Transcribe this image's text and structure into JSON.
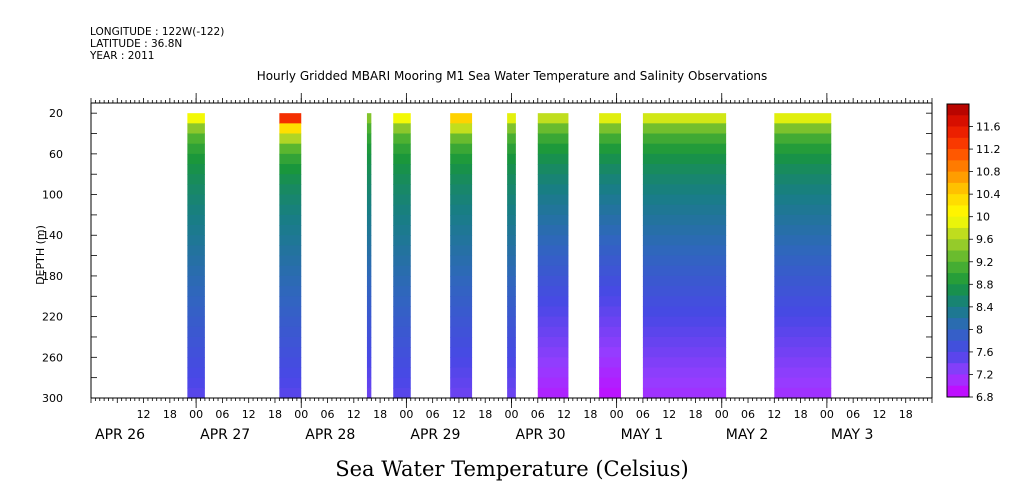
{
  "header": {
    "longitude": "LONGITUDE : 122W(-122)",
    "latitude": "LATITUDE : 36.8N",
    "year": "YEAR : 2011"
  },
  "chart_data": {
    "type": "heatmap",
    "title": "Hourly Gridded MBARI Mooring M1 Sea Water Temperature and Salinity Observations",
    "xlabel": "Sea Water Temperature (Celsius)",
    "ylabel": "DEPTH (m)",
    "y_range": [
      0,
      300
    ],
    "y_ticks": [
      20,
      60,
      100,
      140,
      180,
      220,
      260,
      300
    ],
    "y_inverted": true,
    "x_range_hours": [
      0,
      192
    ],
    "x_start": "APR 26 00",
    "x_hour_labels": [
      {
        "h": 12,
        "label": "12"
      },
      {
        "h": 18,
        "label": "18"
      },
      {
        "h": 24,
        "label": "00"
      },
      {
        "h": 30,
        "label": "06"
      },
      {
        "h": 36,
        "label": "12"
      },
      {
        "h": 42,
        "label": "18"
      },
      {
        "h": 48,
        "label": "00"
      },
      {
        "h": 54,
        "label": "06"
      },
      {
        "h": 60,
        "label": "12"
      },
      {
        "h": 66,
        "label": "18"
      },
      {
        "h": 72,
        "label": "00"
      },
      {
        "h": 78,
        "label": "06"
      },
      {
        "h": 84,
        "label": "12"
      },
      {
        "h": 90,
        "label": "18"
      },
      {
        "h": 96,
        "label": "00"
      },
      {
        "h": 102,
        "label": "06"
      },
      {
        "h": 108,
        "label": "12"
      },
      {
        "h": 114,
        "label": "18"
      },
      {
        "h": 120,
        "label": "00"
      },
      {
        "h": 126,
        "label": "06"
      },
      {
        "h": 132,
        "label": "12"
      },
      {
        "h": 138,
        "label": "18"
      },
      {
        "h": 144,
        "label": "00"
      },
      {
        "h": 150,
        "label": "06"
      },
      {
        "h": 156,
        "label": "12"
      },
      {
        "h": 162,
        "label": "18"
      },
      {
        "h": 168,
        "label": "00"
      },
      {
        "h": 174,
        "label": "06"
      },
      {
        "h": 180,
        "label": "12"
      },
      {
        "h": 186,
        "label": "18"
      }
    ],
    "day_labels": [
      {
        "h": 0,
        "label": "APR 26"
      },
      {
        "h": 24,
        "label": "APR 27"
      },
      {
        "h": 48,
        "label": "APR 28"
      },
      {
        "h": 72,
        "label": "APR 29"
      },
      {
        "h": 96,
        "label": "APR 30"
      },
      {
        "h": 120,
        "label": "MAY  1"
      },
      {
        "h": 144,
        "label": "MAY  2"
      },
      {
        "h": 168,
        "label": "MAY  3"
      }
    ],
    "colorbar": {
      "min": 6.8,
      "max": 12.0,
      "step": 0.2,
      "tick_labels": [
        "11.6",
        "11.2",
        "10.8",
        "10.4",
        "10",
        "9.6",
        "9.2",
        "8.8",
        "8.4",
        "8",
        "7.6",
        "7.2",
        "6.8"
      ]
    },
    "data_segments": [
      {
        "start_h": 22,
        "end_h": 26,
        "surface_temp": 9.9,
        "bottom_temp": 7.5
      },
      {
        "start_h": 43,
        "end_h": 48,
        "surface_temp": 11.8,
        "bottom_temp": 7.5
      },
      {
        "start_h": 63,
        "end_h": 64,
        "surface_temp": 9.2,
        "bottom_temp": 7.4
      },
      {
        "start_h": 69,
        "end_h": 73,
        "surface_temp": 9.9,
        "bottom_temp": 7.5
      },
      {
        "start_h": 82,
        "end_h": 87,
        "surface_temp": 10.5,
        "bottom_temp": 7.4
      },
      {
        "start_h": 95,
        "end_h": 97,
        "surface_temp": 9.8,
        "bottom_temp": 7.4
      },
      {
        "start_h": 102,
        "end_h": 109,
        "surface_temp": 9.6,
        "bottom_temp": 7.0
      },
      {
        "start_h": 116,
        "end_h": 121,
        "surface_temp": 9.8,
        "bottom_temp": 6.9
      },
      {
        "start_h": 126,
        "end_h": 145,
        "surface_temp": 9.7,
        "bottom_temp": 7.1
      },
      {
        "start_h": 156,
        "end_h": 169,
        "surface_temp": 9.8,
        "bottom_temp": 7.1
      }
    ],
    "grid": false,
    "legend": "colorbar-right"
  }
}
